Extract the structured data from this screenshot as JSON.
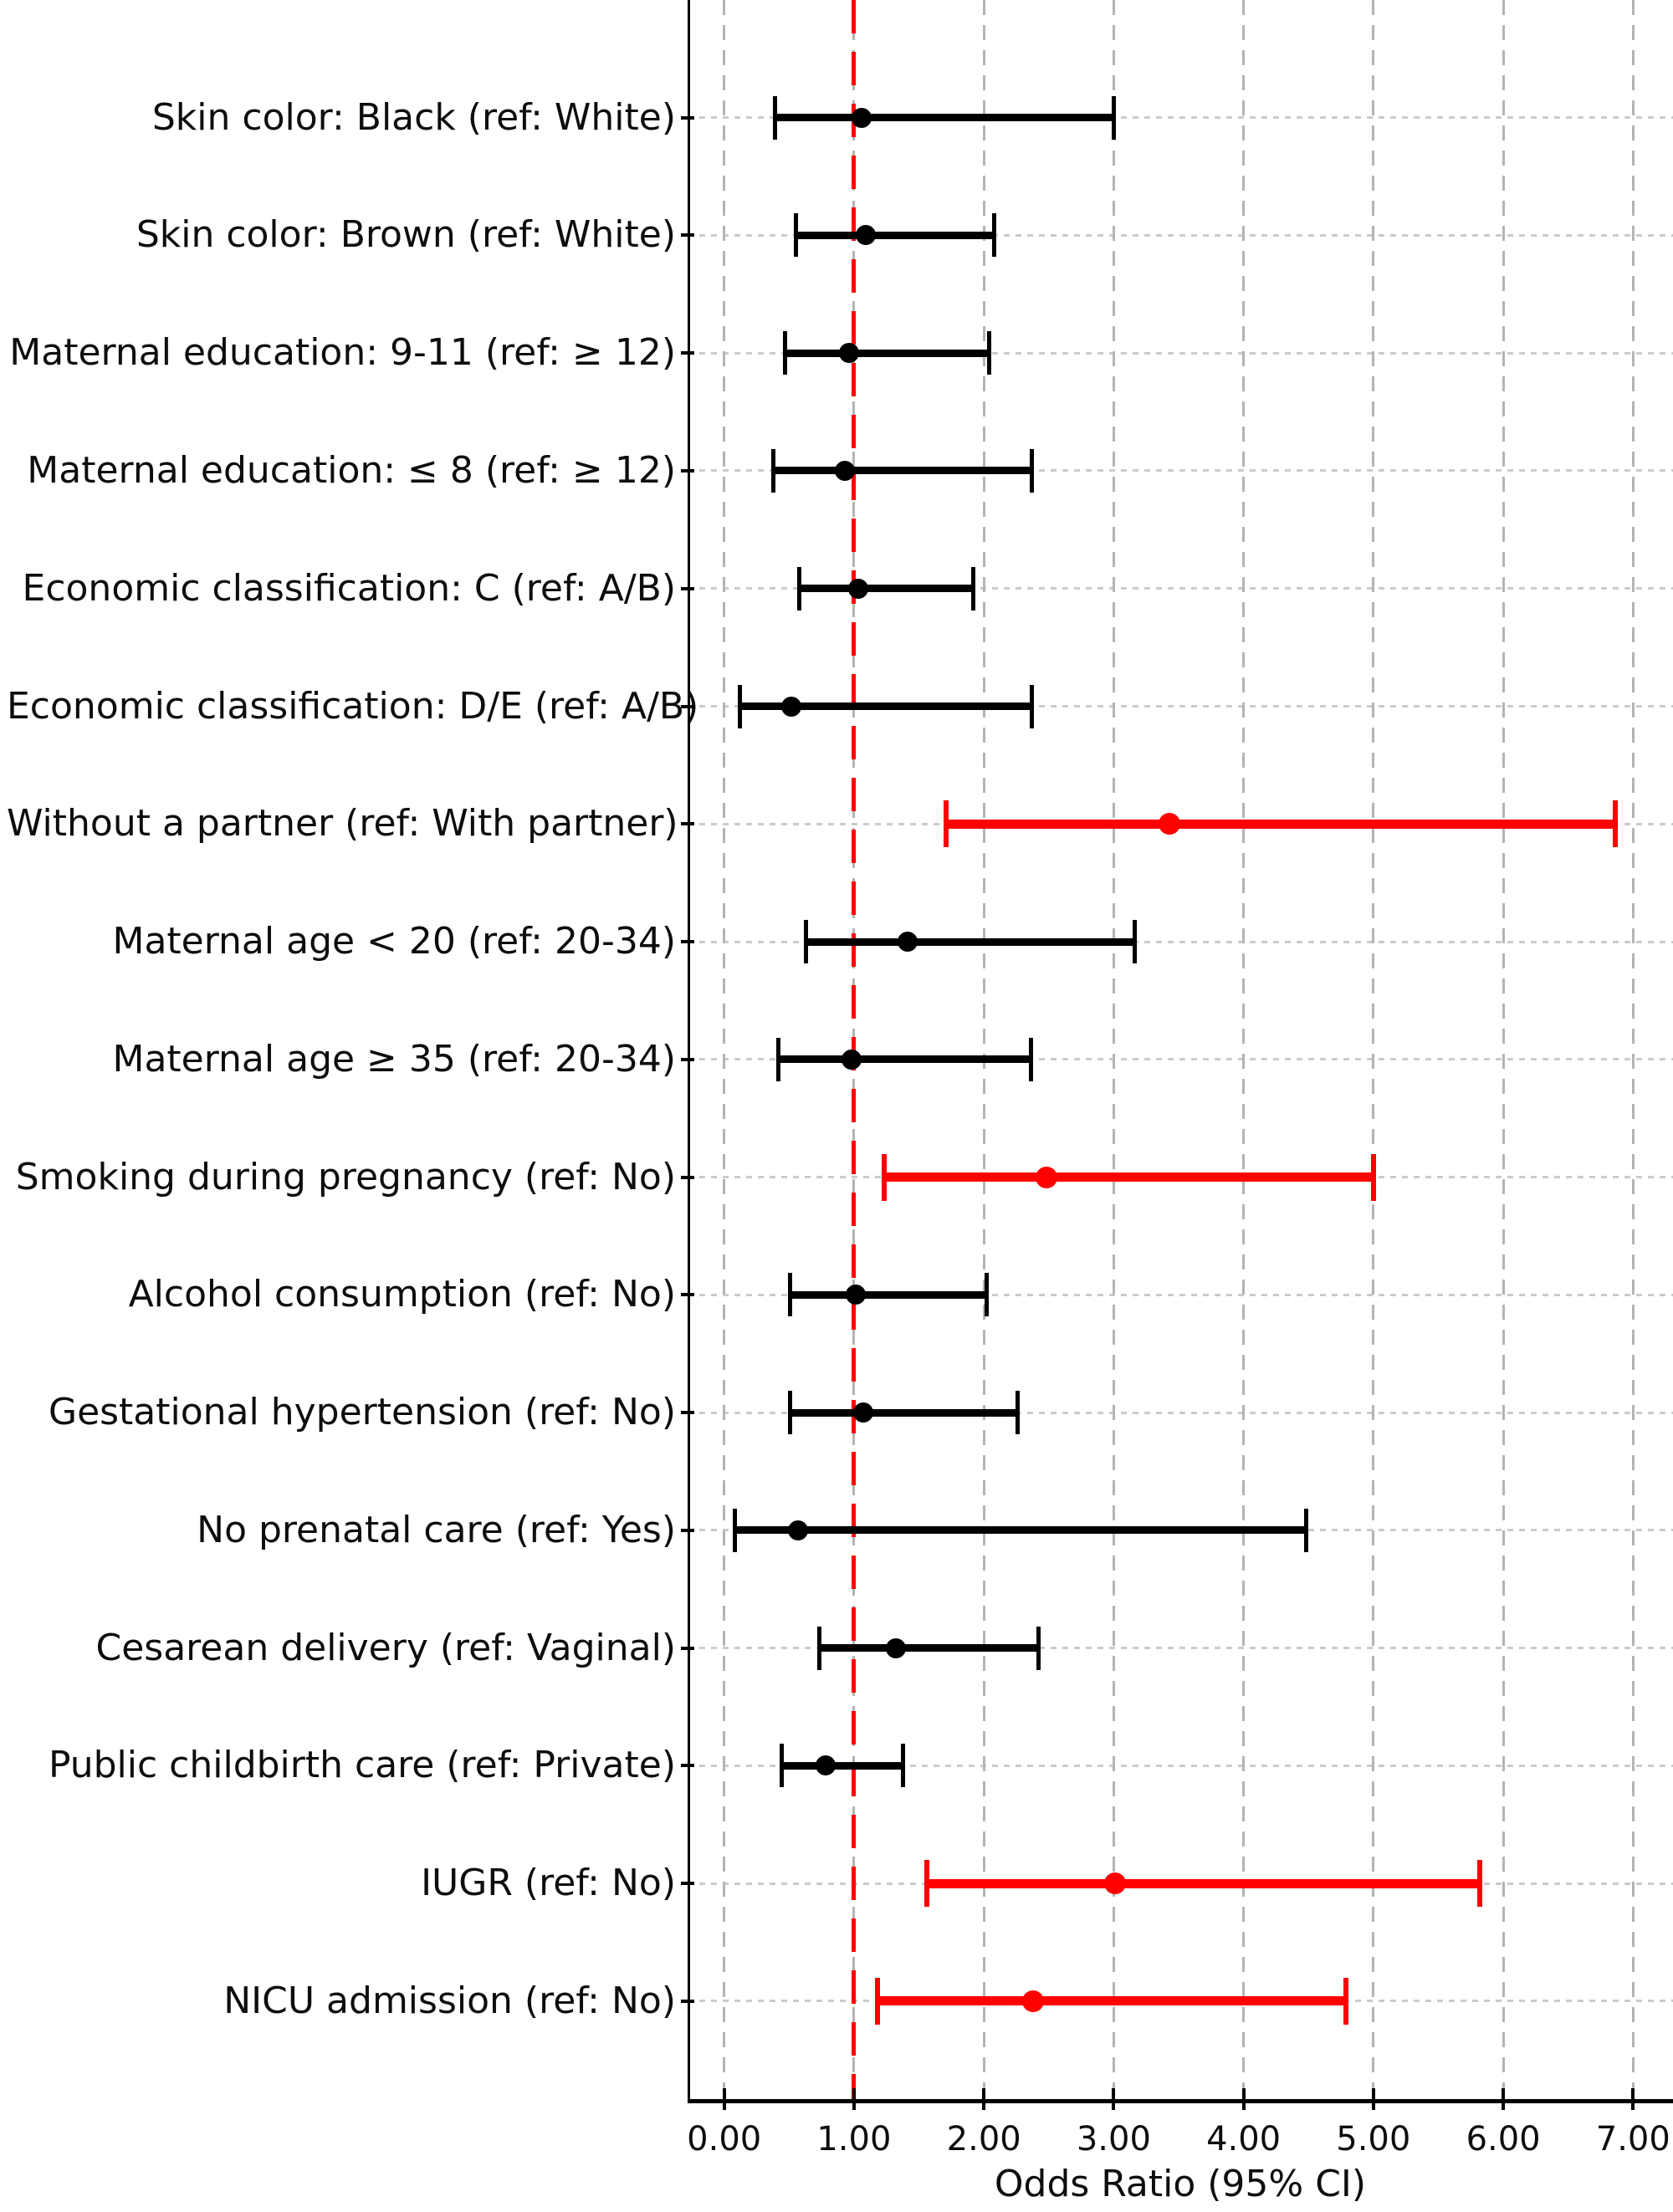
{
  "chart_data": {
    "type": "scatter",
    "variant": "forest-plot",
    "title": "",
    "xlabel": "Odds Ratio (95% CI)",
    "ylabel": "",
    "xlim": [
      -0.28,
      7.31
    ],
    "grid": true,
    "legend": "none",
    "reference_line": {
      "x": 1.0,
      "color": "#ff0000",
      "style": "dashed"
    },
    "colors": {
      "default": "#000000",
      "significant": "#ff0000",
      "grid_v": "#b4b4b4",
      "grid_h": "#cbcbcb"
    },
    "xticks": [
      {
        "v": 0,
        "label": "0.00"
      },
      {
        "v": 1,
        "label": "1.00"
      },
      {
        "v": 2,
        "label": "2.00"
      },
      {
        "v": 3,
        "label": "3.00"
      },
      {
        "v": 4,
        "label": "4.00"
      },
      {
        "v": 5,
        "label": "5.00"
      },
      {
        "v": 6,
        "label": "6.00"
      },
      {
        "v": 7,
        "label": "7.00"
      }
    ],
    "rows": [
      {
        "label": "Skin color: Black (ref: White)",
        "or": 1.06,
        "ci_low": 0.39,
        "ci_high": 3.0,
        "significant": false
      },
      {
        "label": "Skin color: Brown (ref: White)",
        "or": 1.09,
        "ci_low": 0.55,
        "ci_high": 2.08,
        "significant": false
      },
      {
        "label": "Maternal education: 9-11 (ref: ≥ 12)",
        "or": 0.96,
        "ci_low": 0.47,
        "ci_high": 2.04,
        "significant": false
      },
      {
        "label": "Maternal education: ≤ 8 (ref: ≥ 12)",
        "or": 0.93,
        "ci_low": 0.38,
        "ci_high": 2.37,
        "significant": false
      },
      {
        "label": "Economic classification: C (ref: A/B)",
        "or": 1.03,
        "ci_low": 0.58,
        "ci_high": 1.92,
        "significant": false
      },
      {
        "label": "Economic classification: D/E (ref: A/B)",
        "or": 0.52,
        "ci_low": 0.12,
        "ci_high": 2.37,
        "significant": false
      },
      {
        "label": "Without a partner (ref: With partner)",
        "or": 3.43,
        "ci_low": 1.71,
        "ci_high": 6.86,
        "significant": true
      },
      {
        "label": "Maternal age < 20 (ref: 20-34)",
        "or": 1.41,
        "ci_low": 0.63,
        "ci_high": 3.16,
        "significant": false
      },
      {
        "label": "Maternal age ≥ 35 (ref: 20-34)",
        "or": 0.98,
        "ci_low": 0.42,
        "ci_high": 2.36,
        "significant": false
      },
      {
        "label": "Smoking during pregnancy (ref: No)",
        "or": 2.48,
        "ci_low": 1.23,
        "ci_high": 5.0,
        "significant": true
      },
      {
        "label": "Alcohol consumption (ref: No)",
        "or": 1.01,
        "ci_low": 0.51,
        "ci_high": 2.02,
        "significant": false
      },
      {
        "label": "Gestational hypertension (ref: No)",
        "or": 1.07,
        "ci_low": 0.51,
        "ci_high": 2.26,
        "significant": false
      },
      {
        "label": "No prenatal care (ref: Yes)",
        "or": 0.57,
        "ci_low": 0.08,
        "ci_high": 4.48,
        "significant": false
      },
      {
        "label": "Cesarean delivery (ref: Vaginal)",
        "or": 1.32,
        "ci_low": 0.73,
        "ci_high": 2.42,
        "significant": false
      },
      {
        "label": "Public childbirth care (ref: Private)",
        "or": 0.78,
        "ci_low": 0.44,
        "ci_high": 1.38,
        "significant": false
      },
      {
        "label": "IUGR (ref: No)",
        "or": 3.01,
        "ci_low": 1.56,
        "ci_high": 5.82,
        "significant": true
      },
      {
        "label": "NICU admission (ref: No)",
        "or": 2.38,
        "ci_low": 1.18,
        "ci_high": 4.79,
        "significant": true
      }
    ]
  }
}
